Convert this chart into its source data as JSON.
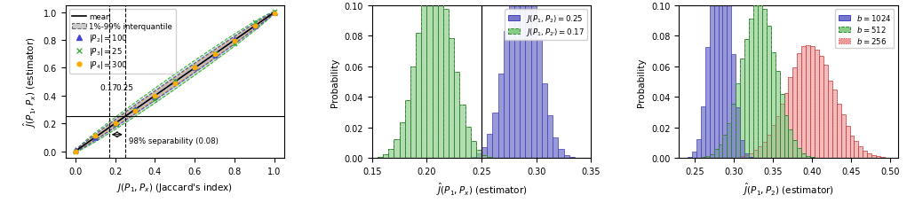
{
  "fig_width": 10.21,
  "fig_height": 2.3,
  "dpi": 100,
  "panel1": {
    "xlim": [
      -0.05,
      1.05
    ],
    "ylim": [
      -0.05,
      1.05
    ],
    "xlabel": "$J(P_1, P_x)$ (Jaccard's index)",
    "ylabel": "$\\hat{J}(P_1, P_x)$ (estimator)",
    "vline1": 0.17,
    "vline2": 0.25,
    "hline": 0.25,
    "annot_text": "98% separability (0.08)",
    "xticks": [
      0.0,
      0.2,
      0.4,
      0.6,
      0.8,
      1.0
    ],
    "yticks": [
      0.0,
      0.2,
      0.4,
      0.6,
      0.8,
      1.0
    ],
    "color_blue": "#4444cc",
    "color_green": "#33aa33",
    "color_orange": "#ffaa00",
    "fill_blue": "#9999ee",
    "fill_green": "#99cc99",
    "fill_orange": "#ffcc77"
  },
  "panel2": {
    "xlim": [
      0.15,
      0.35
    ],
    "ylim": [
      0.0,
      0.1
    ],
    "xlabel": "$\\hat{J}(P_1, P_x)$ (estimator)",
    "ylabel": "Probability",
    "vline": 0.25,
    "blue_mean": 0.287,
    "blue_std": 0.014,
    "green_mean": 0.207,
    "green_std": 0.016,
    "color_blue": "#7777cc",
    "edge_blue": "#4444bb",
    "color_green": "#88cc88",
    "edge_green": "#338833",
    "label_blue": "$J(P_1, P_2) = 0.25$",
    "label_green": "$J(P_1, P_{2'}) = 0.17$",
    "xticks": [
      0.15,
      0.2,
      0.25,
      0.3,
      0.35
    ],
    "yticks": [
      0.0,
      0.02,
      0.04,
      0.06,
      0.08,
      0.1
    ],
    "n_bins": 40
  },
  "panel3": {
    "xlim": [
      0.23,
      0.51
    ],
    "ylim": [
      0.0,
      0.1
    ],
    "xlabel": "$\\hat{J}(P_1, P_2)$ (estimator)",
    "ylabel": "Probability",
    "color_blue": "#7777cc",
    "edge_blue": "#4444bb",
    "color_green": "#88cc88",
    "edge_green": "#338833",
    "color_red": "#ee9999",
    "edge_red": "#cc4444",
    "label_blue": "$b = 1024$",
    "label_green": "$b = 512$",
    "label_red": "$b = 256$",
    "blue_mean": 0.283,
    "blue_std": 0.012,
    "green_mean": 0.332,
    "green_std": 0.022,
    "red_mean": 0.398,
    "red_std": 0.03,
    "xticks": [
      0.25,
      0.3,
      0.35,
      0.4,
      0.45,
      0.5
    ],
    "yticks": [
      0.0,
      0.02,
      0.04,
      0.06,
      0.08,
      0.1
    ],
    "n_bins": 50
  }
}
